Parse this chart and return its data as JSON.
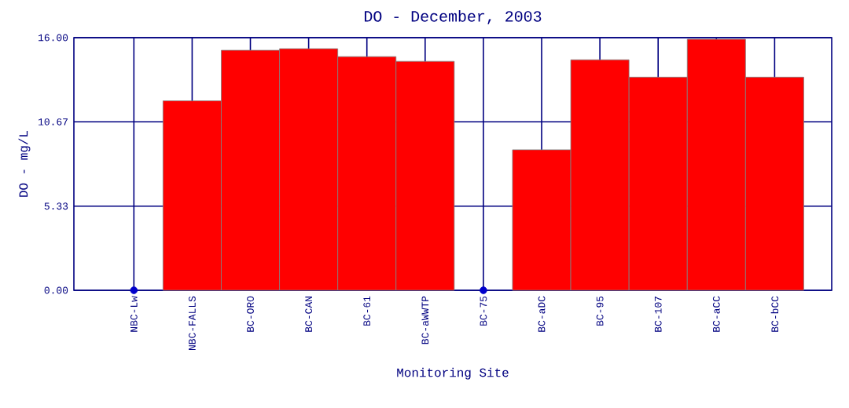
{
  "chart_data": {
    "type": "bar",
    "title": "DO - December, 2003",
    "xlabel": "Monitoring Site",
    "ylabel": "DO - mg/L",
    "categories": [
      "NBC-Lw",
      "NBC-FALLS",
      "BC-ORO",
      "BC-CAN",
      "BC-61",
      "BC-aWWTP",
      "BC-75",
      "BC-aDC",
      "BC-95",
      "BC-107",
      "BC-aCC",
      "BC-bCC"
    ],
    "series": [
      {
        "color": "#ff0000",
        "values": [
          null,
          12.0,
          15.2,
          15.3,
          14.8,
          14.5,
          null,
          8.9,
          14.6,
          13.5,
          15.9,
          13.5
        ]
      },
      {
        "type": "scatter",
        "color": "#0000cc",
        "x": [
          "NBC-Lw",
          "BC-75"
        ],
        "values": [
          0,
          0
        ]
      }
    ],
    "ylim": [
      0,
      16
    ],
    "yticks": [
      {
        "value": 0,
        "label": "0.00"
      },
      5.33,
      10.67,
      {
        "value": 16,
        "label": "16.00"
      }
    ],
    "grid": true,
    "marker": "circle"
  }
}
